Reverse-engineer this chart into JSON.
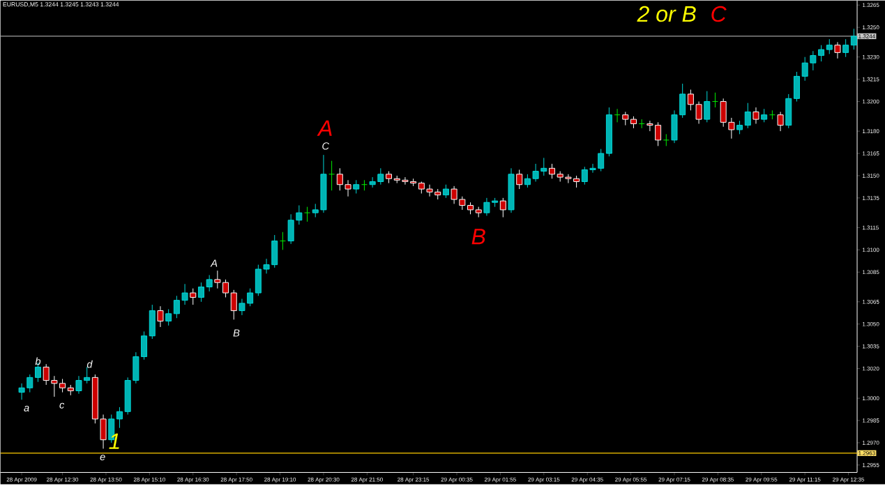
{
  "chart_data": {
    "type": "candlestick",
    "title": "EURUSD,M5  1.3244 1.3245 1.3243 1.3244",
    "x": [
      "2009-04-28T11:15",
      "2009-04-28T11:30",
      "2009-04-28T11:45",
      "2009-04-28T12:00",
      "2009-04-28T12:15",
      "2009-04-28T12:30",
      "2009-04-28T12:45",
      "2009-04-28T13:00",
      "2009-04-28T13:15",
      "2009-04-28T13:30",
      "2009-04-28T13:45",
      "2009-04-28T14:00",
      "2009-04-28T14:15",
      "2009-04-28T14:30",
      "2009-04-28T14:45",
      "2009-04-28T15:00",
      "2009-04-28T15:15",
      "2009-04-28T15:30",
      "2009-04-28T15:45",
      "2009-04-28T16:00",
      "2009-04-28T16:15",
      "2009-04-28T16:30",
      "2009-04-28T16:45",
      "2009-04-28T17:00",
      "2009-04-28T17:15",
      "2009-04-28T17:30",
      "2009-04-28T17:45",
      "2009-04-28T18:00",
      "2009-04-28T18:15",
      "2009-04-28T18:30",
      "2009-04-28T18:45",
      "2009-04-28T19:00",
      "2009-04-28T19:15",
      "2009-04-28T19:30",
      "2009-04-28T19:45",
      "2009-04-28T20:00",
      "2009-04-28T20:15",
      "2009-04-28T20:30",
      "2009-04-28T20:45",
      "2009-04-28T21:00",
      "2009-04-28T21:15",
      "2009-04-28T21:30",
      "2009-04-28T21:45",
      "2009-04-28T22:00",
      "2009-04-28T22:15",
      "2009-04-28T22:30",
      "2009-04-28T22:45",
      "2009-04-28T23:00",
      "2009-04-28T23:15",
      "2009-04-28T23:30",
      "2009-04-28T23:45",
      "2009-04-29T00:00",
      "2009-04-29T00:15",
      "2009-04-29T00:30",
      "2009-04-29T00:45",
      "2009-04-29T01:00",
      "2009-04-29T01:15",
      "2009-04-29T01:30",
      "2009-04-29T01:45",
      "2009-04-29T02:00",
      "2009-04-29T02:15",
      "2009-04-29T02:30",
      "2009-04-29T02:45",
      "2009-04-29T03:00",
      "2009-04-29T03:15",
      "2009-04-29T03:30",
      "2009-04-29T03:45",
      "2009-04-29T04:00",
      "2009-04-29T04:15",
      "2009-04-29T04:30",
      "2009-04-29T04:45",
      "2009-04-29T05:00",
      "2009-04-29T05:15",
      "2009-04-29T05:30",
      "2009-04-29T05:45",
      "2009-04-29T06:00",
      "2009-04-29T06:15",
      "2009-04-29T06:30",
      "2009-04-29T06:45",
      "2009-04-29T07:00",
      "2009-04-29T07:15",
      "2009-04-29T07:30",
      "2009-04-29T07:45",
      "2009-04-29T08:00",
      "2009-04-29T08:15",
      "2009-04-29T08:30",
      "2009-04-29T08:45",
      "2009-04-29T09:00",
      "2009-04-29T09:15",
      "2009-04-29T09:30",
      "2009-04-29T09:45",
      "2009-04-29T10:00",
      "2009-04-29T10:15",
      "2009-04-29T10:30",
      "2009-04-29T10:45",
      "2009-04-29T11:00",
      "2009-04-29T11:15",
      "2009-04-29T11:30",
      "2009-04-29T11:45",
      "2009-04-29T12:00",
      "2009-04-29T12:15",
      "2009-04-29T12:30",
      "2009-04-29T12:45"
    ],
    "ohlc": [
      [
        1.3004,
        1.301,
        1.2999,
        1.3007
      ],
      [
        1.3007,
        1.3016,
        1.3004,
        1.3014
      ],
      [
        1.3014,
        1.3024,
        1.3011,
        1.3021
      ],
      [
        1.3021,
        1.3023,
        1.3009,
        1.3012
      ],
      [
        1.3012,
        1.3015,
        1.3001,
        1.301
      ],
      [
        1.301,
        1.3013,
        1.3004,
        1.3007
      ],
      [
        1.3007,
        1.3009,
        1.3002,
        1.3005
      ],
      [
        1.3005,
        1.3015,
        1.3003,
        1.3012
      ],
      [
        1.3012,
        1.3021,
        1.301,
        1.3014
      ],
      [
        1.3014,
        1.3016,
        1.2983,
        1.2986
      ],
      [
        1.2986,
        1.2989,
        1.2966,
        1.2972
      ],
      [
        1.2972,
        1.2989,
        1.297,
        1.2986
      ],
      [
        1.2986,
        1.2994,
        1.298,
        1.2991
      ],
      [
        1.2991,
        1.3014,
        1.2989,
        1.3012
      ],
      [
        1.3012,
        1.3031,
        1.301,
        1.3028
      ],
      [
        1.3028,
        1.3045,
        1.3026,
        1.3042
      ],
      [
        1.3042,
        1.3063,
        1.304,
        1.3059
      ],
      [
        1.3059,
        1.3062,
        1.3048,
        1.3052
      ],
      [
        1.3052,
        1.306,
        1.3049,
        1.3057
      ],
      [
        1.3057,
        1.3069,
        1.3054,
        1.3066
      ],
      [
        1.3066,
        1.3077,
        1.3063,
        1.3071
      ],
      [
        1.3071,
        1.3074,
        1.3063,
        1.3068
      ],
      [
        1.3068,
        1.3078,
        1.3065,
        1.3075
      ],
      [
        1.3075,
        1.3083,
        1.3072,
        1.308
      ],
      [
        1.308,
        1.3086,
        1.3074,
        1.3078
      ],
      [
        1.3078,
        1.308,
        1.3068,
        1.3071
      ],
      [
        1.3071,
        1.3073,
        1.3053,
        1.3059
      ],
      [
        1.3059,
        1.3067,
        1.3056,
        1.3064
      ],
      [
        1.3064,
        1.3074,
        1.3062,
        1.3071
      ],
      [
        1.3071,
        1.309,
        1.3069,
        1.3087
      ],
      [
        1.3087,
        1.3094,
        1.3084,
        1.309
      ],
      [
        1.309,
        1.311,
        1.3088,
        1.3106
      ],
      [
        1.3106,
        1.3112,
        1.31,
        1.3106
      ],
      [
        1.3106,
        1.3124,
        1.3104,
        1.312
      ],
      [
        1.312,
        1.313,
        1.3117,
        1.3125
      ],
      [
        1.3125,
        1.3129,
        1.3119,
        1.3125
      ],
      [
        1.3125,
        1.3131,
        1.3122,
        1.3127
      ],
      [
        1.3127,
        1.3164,
        1.3125,
        1.3151
      ],
      [
        1.3151,
        1.316,
        1.314,
        1.3151
      ],
      [
        1.3151,
        1.3155,
        1.314,
        1.3144
      ],
      [
        1.3144,
        1.3147,
        1.3136,
        1.3141
      ],
      [
        1.3141,
        1.3147,
        1.3138,
        1.3144
      ],
      [
        1.3144,
        1.3147,
        1.314,
        1.3144
      ],
      [
        1.3144,
        1.3149,
        1.3142,
        1.3146
      ],
      [
        1.3146,
        1.3155,
        1.3144,
        1.3151
      ],
      [
        1.3151,
        1.3153,
        1.3145,
        1.3148
      ],
      [
        1.3148,
        1.315,
        1.3145,
        1.3147
      ],
      [
        1.3147,
        1.3149,
        1.3144,
        1.3146
      ],
      [
        1.3146,
        1.3148,
        1.3143,
        1.3145
      ],
      [
        1.3145,
        1.3146,
        1.3138,
        1.3141
      ],
      [
        1.3141,
        1.3144,
        1.3136,
        1.3139
      ],
      [
        1.3139,
        1.3141,
        1.3134,
        1.3137
      ],
      [
        1.3137,
        1.3144,
        1.3135,
        1.3141
      ],
      [
        1.3141,
        1.3143,
        1.3131,
        1.3134
      ],
      [
        1.3134,
        1.3136,
        1.3127,
        1.313
      ],
      [
        1.313,
        1.3132,
        1.3124,
        1.3127
      ],
      [
        1.3127,
        1.3129,
        1.3122,
        1.3125
      ],
      [
        1.3125,
        1.3135,
        1.3123,
        1.3132
      ],
      [
        1.3132,
        1.3135,
        1.3129,
        1.3133
      ],
      [
        1.3133,
        1.3135,
        1.3122,
        1.3127
      ],
      [
        1.3127,
        1.3155,
        1.3125,
        1.3151
      ],
      [
        1.3151,
        1.3154,
        1.3141,
        1.3144
      ],
      [
        1.3144,
        1.3151,
        1.3142,
        1.3148
      ],
      [
        1.3148,
        1.3158,
        1.3146,
        1.3153
      ],
      [
        1.3153,
        1.3162,
        1.315,
        1.3155
      ],
      [
        1.3155,
        1.3158,
        1.3148,
        1.3151
      ],
      [
        1.3151,
        1.3153,
        1.3146,
        1.3149
      ],
      [
        1.3149,
        1.3151,
        1.3145,
        1.3148
      ],
      [
        1.3148,
        1.315,
        1.3142,
        1.3146
      ],
      [
        1.3146,
        1.3156,
        1.3144,
        1.3154
      ],
      [
        1.3154,
        1.3158,
        1.3152,
        1.3155
      ],
      [
        1.3155,
        1.3168,
        1.3153,
        1.3165
      ],
      [
        1.3165,
        1.3196,
        1.3163,
        1.3191
      ],
      [
        1.3191,
        1.3195,
        1.3186,
        1.3191
      ],
      [
        1.3191,
        1.3193,
        1.3184,
        1.3188
      ],
      [
        1.3188,
        1.319,
        1.3182,
        1.3185
      ],
      [
        1.3185,
        1.3188,
        1.3182,
        1.3185
      ],
      [
        1.3185,
        1.3187,
        1.318,
        1.3184
      ],
      [
        1.3184,
        1.3186,
        1.317,
        1.3174
      ],
      [
        1.3174,
        1.3178,
        1.317,
        1.3174
      ],
      [
        1.3174,
        1.3194,
        1.3172,
        1.3191
      ],
      [
        1.3191,
        1.3212,
        1.3189,
        1.3205
      ],
      [
        1.3205,
        1.3208,
        1.3194,
        1.3198
      ],
      [
        1.3198,
        1.32,
        1.3185,
        1.3188
      ],
      [
        1.3188,
        1.3207,
        1.3186,
        1.32
      ],
      [
        1.32,
        1.3206,
        1.3196,
        1.32
      ],
      [
        1.32,
        1.3202,
        1.3183,
        1.3186
      ],
      [
        1.3186,
        1.3189,
        1.3175,
        1.3181
      ],
      [
        1.3181,
        1.3187,
        1.3178,
        1.3184
      ],
      [
        1.3184,
        1.3199,
        1.3182,
        1.3193
      ],
      [
        1.3193,
        1.3196,
        1.3185,
        1.3188
      ],
      [
        1.3188,
        1.3195,
        1.3186,
        1.3191
      ],
      [
        1.3191,
        1.3194,
        1.3188,
        1.3191
      ],
      [
        1.3191,
        1.3193,
        1.318,
        1.3184
      ],
      [
        1.3184,
        1.3205,
        1.3182,
        1.3202
      ],
      [
        1.3202,
        1.322,
        1.32,
        1.3217
      ],
      [
        1.3217,
        1.323,
        1.3214,
        1.3226
      ],
      [
        1.3226,
        1.3234,
        1.3221,
        1.3231
      ],
      [
        1.3231,
        1.3238,
        1.3227,
        1.3235
      ],
      [
        1.3235,
        1.3242,
        1.3232,
        1.3238
      ],
      [
        1.3238,
        1.324,
        1.3229,
        1.3233
      ],
      [
        1.3233,
        1.3242,
        1.323,
        1.3238
      ],
      [
        1.3238,
        1.3249,
        1.3235,
        1.3244
      ]
    ],
    "xlim": [
      "2009-04-28T10:36",
      "2009-04-29T12:51"
    ],
    "xticks": [
      {
        "value": "2009-04-28T11:15",
        "label": "28 Apr 2009"
      },
      {
        "value": "2009-04-28T12:30",
        "label": "28 Apr 12:30"
      },
      {
        "value": "2009-04-28T13:50",
        "label": "28 Apr 13:50"
      },
      {
        "value": "2009-04-28T15:10",
        "label": "28 Apr 15:10"
      },
      {
        "value": "2009-04-28T16:30",
        "label": "28 Apr 16:30"
      },
      {
        "value": "2009-04-28T17:50",
        "label": "28 Apr 17:50"
      },
      {
        "value": "2009-04-28T19:10",
        "label": "28 Apr 19:10"
      },
      {
        "value": "2009-04-28T20:30",
        "label": "28 Apr 20:30"
      },
      {
        "value": "2009-04-28T21:50",
        "label": "28 Apr 21:50"
      },
      {
        "value": "2009-04-28T23:15",
        "label": "28 Apr 23:15"
      },
      {
        "value": "2009-04-29T00:35",
        "label": "29 Apr 00:35"
      },
      {
        "value": "2009-04-29T01:55",
        "label": "29 Apr 01:55"
      },
      {
        "value": "2009-04-29T03:15",
        "label": "29 Apr 03:15"
      },
      {
        "value": "2009-04-29T04:35",
        "label": "29 Apr 04:35"
      },
      {
        "value": "2009-04-29T05:55",
        "label": "29 Apr 05:55"
      },
      {
        "value": "2009-04-29T07:15",
        "label": "29 Apr 07:15"
      },
      {
        "value": "2009-04-29T08:35",
        "label": "29 Apr 08:35"
      },
      {
        "value": "2009-04-29T09:55",
        "label": "29 Apr 09:55"
      },
      {
        "value": "2009-04-29T11:15",
        "label": "29 Apr 11:15"
      },
      {
        "value": "2009-04-29T12:35",
        "label": "29 Apr 12:35"
      }
    ],
    "ylim": [
      1.295,
      1.3268
    ],
    "yticks": [
      {
        "value": 1.2955,
        "label": "1.2955"
      },
      {
        "value": 1.297,
        "label": "1.2970"
      },
      {
        "value": 1.2985,
        "label": "1.2985"
      },
      {
        "value": 1.3,
        "label": "1.3000"
      },
      {
        "value": 1.302,
        "label": "1.3020"
      },
      {
        "value": 1.3035,
        "label": "1.3035"
      },
      {
        "value": 1.305,
        "label": "1.3050"
      },
      {
        "value": 1.3065,
        "label": "1.3065"
      },
      {
        "value": 1.3085,
        "label": "1.3085"
      },
      {
        "value": 1.31,
        "label": "1.3100"
      },
      {
        "value": 1.3115,
        "label": "1.3115"
      },
      {
        "value": 1.3135,
        "label": "1.3135"
      },
      {
        "value": 1.315,
        "label": "1.3150"
      },
      {
        "value": 1.3165,
        "label": "1.3165"
      },
      {
        "value": 1.318,
        "label": "1.3180"
      },
      {
        "value": 1.32,
        "label": "1.3200"
      },
      {
        "value": 1.3215,
        "label": "1.3215"
      },
      {
        "value": 1.323,
        "label": "1.3230"
      },
      {
        "value": 1.325,
        "label": "1.3250"
      },
      {
        "value": 1.3265,
        "label": "1.3265"
      }
    ],
    "ref_lines": [
      {
        "axis": "y",
        "value": 1.2963,
        "label": "1.2963",
        "color": "#ffcc00"
      },
      {
        "axis": "y",
        "value": 1.3244,
        "label": "1.3244",
        "color": "#a0a0a0"
      }
    ],
    "annotations": [
      "a",
      "b",
      "c",
      "d",
      "e",
      "1",
      "A",
      "B",
      "C",
      "A",
      "B",
      "2 or B",
      "C"
    ]
  }
}
